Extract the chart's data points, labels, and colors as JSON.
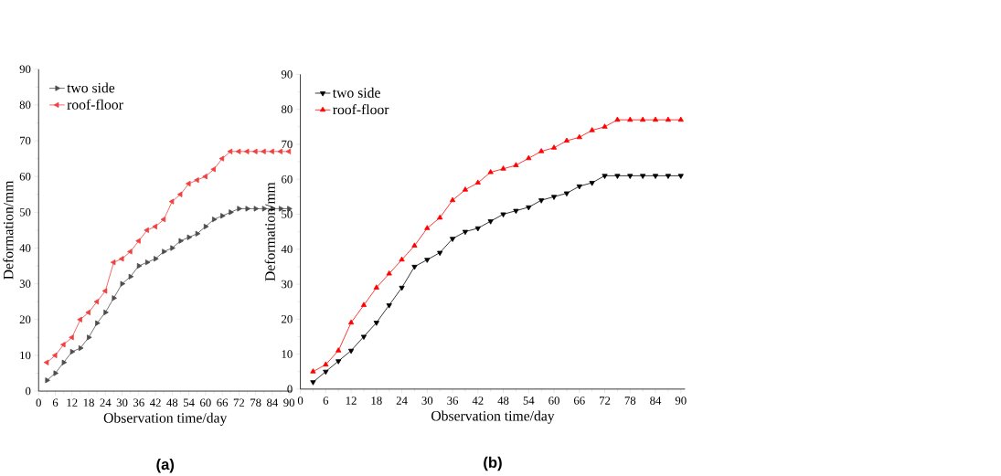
{
  "chart_data": [
    {
      "type": "line",
      "title": "(a)",
      "xlabel": "Observation time/day",
      "ylabel": "Deformation/mm",
      "x": [
        3,
        6,
        9,
        12,
        15,
        18,
        21,
        24,
        27,
        30,
        33,
        36,
        39,
        42,
        45,
        48,
        51,
        54,
        57,
        60,
        63,
        66,
        69,
        72,
        75,
        78,
        81,
        84,
        87,
        90
      ],
      "series": [
        {
          "name": "two side",
          "color": "#4d4d4d",
          "marker": "triangle",
          "values": [
            3,
            5,
            8,
            11,
            12,
            15,
            19,
            22,
            26,
            30,
            32,
            35,
            36,
            37,
            39,
            40,
            42,
            43,
            44,
            46,
            48,
            49,
            50,
            51,
            51,
            51,
            51,
            51,
            51,
            51
          ]
        },
        {
          "name": "roof-floor",
          "color": "#f04040",
          "marker": "triangle",
          "values": [
            8,
            10,
            13,
            15,
            20,
            22,
            25,
            28,
            36,
            37,
            39,
            42,
            45,
            46,
            48,
            53,
            55,
            58,
            59,
            60,
            62,
            65,
            67,
            67,
            67,
            67,
            67,
            67,
            67,
            67
          ]
        }
      ],
      "xlim": [
        0,
        91
      ],
      "ylim": [
        0,
        90
      ],
      "xticks": [
        0,
        6,
        12,
        18,
        24,
        30,
        36,
        42,
        48,
        54,
        60,
        66,
        72,
        78,
        84,
        90
      ],
      "yticks": [
        0,
        10,
        20,
        30,
        40,
        50,
        60,
        70,
        80,
        90
      ],
      "legend": "top left",
      "grid": false
    },
    {
      "type": "line",
      "title": "(b)",
      "xlabel": "Observation time/day",
      "ylabel": "Deformation/mm",
      "x": [
        3,
        6,
        9,
        12,
        15,
        18,
        21,
        24,
        27,
        30,
        33,
        36,
        39,
        42,
        45,
        48,
        51,
        54,
        57,
        60,
        63,
        66,
        69,
        72,
        75,
        78,
        81,
        84,
        87,
        90
      ],
      "series": [
        {
          "name": "two side",
          "color": "#000000",
          "marker": "triangle",
          "values": [
            2,
            5,
            8,
            11,
            15,
            19,
            24,
            29,
            35,
            37,
            39,
            43,
            45,
            46,
            48,
            50,
            51,
            52,
            54,
            55,
            56,
            58,
            59,
            61,
            61,
            61,
            61,
            61,
            61,
            61
          ]
        },
        {
          "name": "roof-floor",
          "color": "#ff0000",
          "marker": "triangle",
          "values": [
            5,
            7,
            11,
            19,
            24,
            29,
            33,
            37,
            41,
            46,
            49,
            54,
            57,
            59,
            62,
            63,
            64,
            66,
            68,
            69,
            71,
            72,
            74,
            75,
            77,
            77,
            77,
            77,
            77,
            77
          ]
        }
      ],
      "xlim": [
        0,
        91
      ],
      "ylim": [
        0,
        90
      ],
      "xticks": [
        0,
        6,
        12,
        18,
        24,
        30,
        36,
        42,
        48,
        54,
        60,
        66,
        72,
        78,
        84,
        90
      ],
      "yticks": [
        0,
        10,
        20,
        30,
        40,
        50,
        60,
        70,
        80,
        90
      ],
      "legend": "top left",
      "grid": false
    }
  ]
}
